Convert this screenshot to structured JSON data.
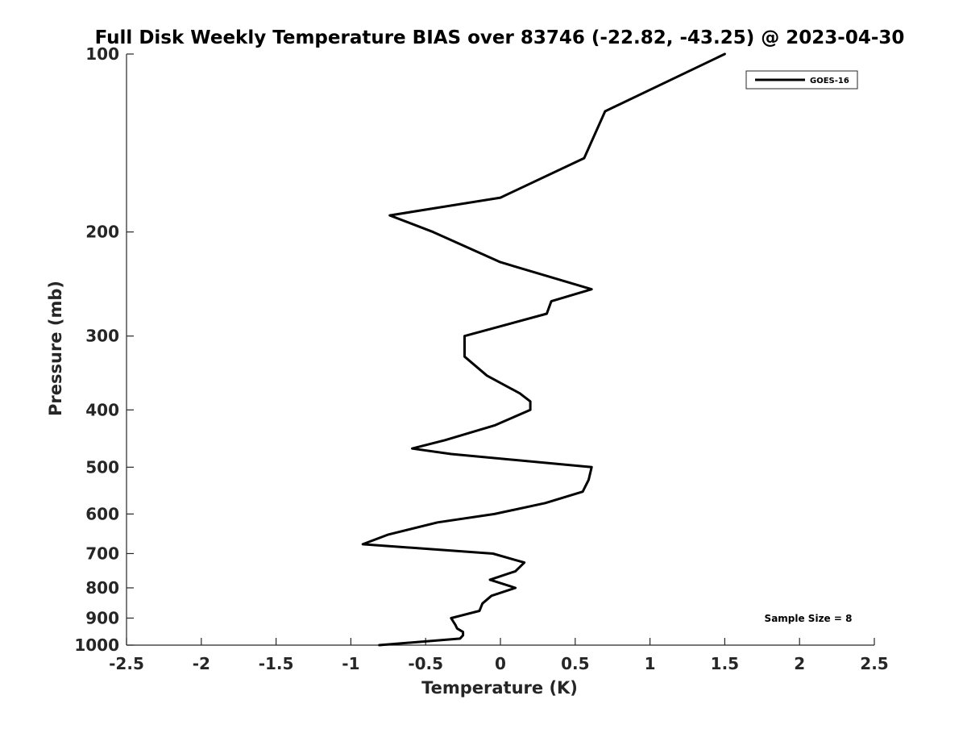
{
  "chart_data": {
    "type": "line",
    "title": "Full Disk Weekly Temperature BIAS over 83746 (-22.82, -43.25) @ 2023-04-30",
    "xlabel": "Temperature (K)",
    "ylabel": "Pressure (mb)",
    "xlim": [
      -2.5,
      2.5
    ],
    "ylim": [
      1000,
      100
    ],
    "yscale": "log",
    "y_reversed": true,
    "x_ticks": [
      -2.5,
      -2,
      -1.5,
      -1,
      -0.5,
      0,
      0.5,
      1,
      1.5,
      2,
      2.5
    ],
    "x_tick_labels": [
      "-2.5",
      "-2",
      "-1.5",
      "-1",
      "-0.5",
      "0",
      "0.5",
      "1",
      "1.5",
      "2",
      "2.5"
    ],
    "y_ticks": [
      100,
      200,
      300,
      400,
      500,
      600,
      700,
      800,
      900,
      1000
    ],
    "y_tick_labels": [
      "100",
      "200",
      "300",
      "400",
      "500",
      "600",
      "700",
      "800",
      "900",
      "1000"
    ],
    "grid": false,
    "legend_position": "top-right",
    "annotation": "Sample Size = 8",
    "series": [
      {
        "name": "GOES-16",
        "color": "#000000",
        "points": [
          {
            "x": 1.5,
            "y": 100
          },
          {
            "x": 0.7,
            "y": 125
          },
          {
            "x": 0.56,
            "y": 150
          },
          {
            "x": 0.0,
            "y": 175
          },
          {
            "x": -0.74,
            "y": 187.5
          },
          {
            "x": -0.45,
            "y": 200
          },
          {
            "x": 0.0,
            "y": 225
          },
          {
            "x": 0.61,
            "y": 250
          },
          {
            "x": 0.34,
            "y": 262
          },
          {
            "x": 0.31,
            "y": 275
          },
          {
            "x": -0.24,
            "y": 300
          },
          {
            "x": -0.24,
            "y": 325
          },
          {
            "x": -0.09,
            "y": 350
          },
          {
            "x": 0.13,
            "y": 375
          },
          {
            "x": 0.2,
            "y": 387
          },
          {
            "x": 0.2,
            "y": 400
          },
          {
            "x": -0.04,
            "y": 425
          },
          {
            "x": -0.37,
            "y": 450
          },
          {
            "x": -0.59,
            "y": 465
          },
          {
            "x": -0.33,
            "y": 475
          },
          {
            "x": 0.61,
            "y": 500
          },
          {
            "x": 0.59,
            "y": 525
          },
          {
            "x": 0.55,
            "y": 550
          },
          {
            "x": 0.3,
            "y": 575
          },
          {
            "x": -0.04,
            "y": 600
          },
          {
            "x": -0.42,
            "y": 620
          },
          {
            "x": -0.75,
            "y": 650
          },
          {
            "x": -0.92,
            "y": 675
          },
          {
            "x": -0.05,
            "y": 700
          },
          {
            "x": 0.16,
            "y": 725
          },
          {
            "x": 0.1,
            "y": 750
          },
          {
            "x": -0.07,
            "y": 775
          },
          {
            "x": 0.1,
            "y": 800
          },
          {
            "x": -0.06,
            "y": 825
          },
          {
            "x": -0.12,
            "y": 850
          },
          {
            "x": -0.14,
            "y": 875
          },
          {
            "x": -0.33,
            "y": 900
          },
          {
            "x": -0.3,
            "y": 925
          },
          {
            "x": -0.29,
            "y": 937
          },
          {
            "x": -0.25,
            "y": 950
          },
          {
            "x": -0.25,
            "y": 962
          },
          {
            "x": -0.27,
            "y": 975
          },
          {
            "x": -0.81,
            "y": 1000
          }
        ]
      }
    ]
  }
}
